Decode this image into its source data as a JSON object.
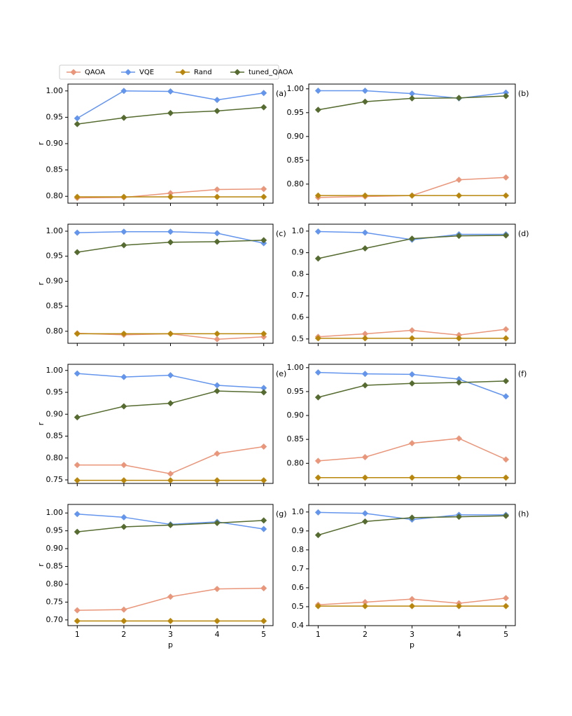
{
  "chart_data": [
    {
      "type": "line",
      "label": "(a)",
      "ylabel": "r",
      "x": [
        1,
        2,
        3,
        4,
        5
      ],
      "xlim": [
        0.8,
        5.2
      ],
      "ylim": [
        0.787,
        1.013
      ],
      "yticks": [
        {
          "value": 0.8,
          "label": "0.80"
        },
        0.85,
        {
          "value": 0.9,
          "label": "0.90"
        },
        0.95,
        {
          "value": 1,
          "label": "1.00"
        }
      ],
      "series": [
        {
          "name": "QAOA",
          "color": "#e9967a",
          "values": [
            0.797,
            0.798,
            0.806,
            0.813,
            0.814
          ]
        },
        {
          "name": "VQE",
          "color": "#6495ed",
          "values": [
            0.948,
            1.0,
            0.999,
            0.983,
            0.996
          ]
        },
        {
          "name": "Rand",
          "color": "#b8860b",
          "values": [
            0.799,
            0.799,
            0.799,
            0.799,
            0.799
          ]
        },
        {
          "name": "tuned_QAOA",
          "color": "#556b2f",
          "values": [
            0.937,
            0.949,
            0.958,
            0.962,
            0.969
          ]
        }
      ]
    },
    {
      "type": "line",
      "label": "(b)",
      "x": [
        1,
        2,
        3,
        4,
        5
      ],
      "xlim": [
        0.8,
        5.2
      ],
      "ylim": [
        0.76,
        1.01
      ],
      "yticks": [
        {
          "value": 0.8,
          "label": "0.80"
        },
        0.85,
        {
          "value": 0.9,
          "label": "0.90"
        },
        0.95,
        {
          "value": 1,
          "label": "1.00"
        }
      ],
      "series": [
        {
          "values": [
            0.772,
            0.774,
            0.776,
            0.809,
            0.814
          ]
        },
        {
          "values": [
            0.996,
            0.996,
            0.99,
            0.98,
            0.992
          ]
        },
        {
          "values": [
            0.776,
            0.776,
            0.776,
            0.776,
            0.776
          ]
        },
        {
          "values": [
            0.956,
            0.973,
            0.98,
            0.981,
            0.985
          ]
        }
      ]
    },
    {
      "type": "line",
      "label": "(c)",
      "ylabel": "r",
      "x": [
        1,
        2,
        3,
        4,
        5
      ],
      "xlim": [
        0.8,
        5.2
      ],
      "ylim": [
        0.776,
        1.014
      ],
      "yticks": [
        {
          "value": 0.8,
          "label": "0.80"
        },
        0.85,
        {
          "value": 0.9,
          "label": "0.90"
        },
        0.95,
        {
          "value": 1,
          "label": "1.00"
        }
      ],
      "series": [
        {
          "values": [
            0.796,
            0.793,
            0.795,
            0.784,
            0.789
          ]
        },
        {
          "values": [
            0.997,
            0.999,
            0.999,
            0.996,
            0.976
          ]
        },
        {
          "values": [
            0.795,
            0.795,
            0.795,
            0.795,
            0.795
          ]
        },
        {
          "values": [
            0.958,
            0.972,
            0.978,
            0.979,
            0.982
          ]
        }
      ]
    },
    {
      "type": "line",
      "label": "(d)",
      "x": [
        1,
        2,
        3,
        4,
        5
      ],
      "xlim": [
        0.8,
        5.2
      ],
      "ylim": [
        0.48,
        1.032
      ],
      "yticks": [
        0.5,
        0.6,
        0.7,
        0.8,
        0.9,
        {
          "value": 1,
          "label": "1.0"
        }
      ],
      "series": [
        {
          "values": [
            0.51,
            0.524,
            0.54,
            0.518,
            0.545
          ]
        },
        {
          "values": [
            0.998,
            0.993,
            0.96,
            0.985,
            0.985
          ]
        },
        {
          "values": [
            0.503,
            0.503,
            0.503,
            0.503,
            0.503
          ]
        },
        {
          "values": [
            0.873,
            0.92,
            0.965,
            0.978,
            0.98
          ]
        }
      ]
    },
    {
      "type": "line",
      "label": "(e)",
      "ylabel": "r",
      "x": [
        1,
        2,
        3,
        4,
        5
      ],
      "xlim": [
        0.8,
        5.2
      ],
      "ylim": [
        0.742,
        1.014
      ],
      "yticks": [
        0.75,
        {
          "value": 0.8,
          "label": "0.80"
        },
        0.85,
        {
          "value": 0.9,
          "label": "0.90"
        },
        0.95,
        {
          "value": 1,
          "label": "1.00"
        }
      ],
      "series": [
        {
          "values": [
            0.784,
            0.784,
            0.764,
            0.81,
            0.826
          ]
        },
        {
          "values": [
            0.993,
            0.985,
            0.989,
            0.966,
            0.96
          ]
        },
        {
          "values": [
            0.749,
            0.749,
            0.749,
            0.749,
            0.749
          ]
        },
        {
          "values": [
            0.893,
            0.918,
            0.925,
            0.953,
            0.95
          ]
        }
      ]
    },
    {
      "type": "line",
      "label": "(f)",
      "x": [
        1,
        2,
        3,
        4,
        5
      ],
      "xlim": [
        0.8,
        5.2
      ],
      "ylim": [
        0.758,
        1.007
      ],
      "yticks": [
        {
          "value": 0.8,
          "label": "0.80"
        },
        0.85,
        {
          "value": 0.9,
          "label": "0.90"
        },
        0.95,
        {
          "value": 1,
          "label": "1.00"
        }
      ],
      "series": [
        {
          "values": [
            0.805,
            0.813,
            0.842,
            0.852,
            0.808
          ]
        },
        {
          "values": [
            0.99,
            0.987,
            0.986,
            0.976,
            0.94
          ]
        },
        {
          "values": [
            0.77,
            0.77,
            0.77,
            0.77,
            0.77
          ]
        },
        {
          "values": [
            0.938,
            0.963,
            0.967,
            0.969,
            0.972
          ]
        }
      ]
    },
    {
      "type": "line",
      "label": "(g)",
      "ylabel": "r",
      "xlabel": "p",
      "x": [
        1,
        2,
        3,
        4,
        5
      ],
      "xlim": [
        0.8,
        5.2
      ],
      "ylim": [
        0.684,
        1.024
      ],
      "xticks": [
        1,
        2,
        3,
        4,
        5
      ],
      "yticks": [
        {
          "value": 0.7,
          "label": "0.70"
        },
        0.75,
        {
          "value": 0.8,
          "label": "0.80"
        },
        0.85,
        {
          "value": 0.9,
          "label": "0.90"
        },
        0.95,
        {
          "value": 1,
          "label": "1.00"
        }
      ],
      "series": [
        {
          "values": [
            0.727,
            0.729,
            0.765,
            0.787,
            0.789
          ]
        },
        {
          "values": [
            0.997,
            0.988,
            0.968,
            0.975,
            0.955
          ]
        },
        {
          "values": [
            0.697,
            0.697,
            0.697,
            0.697,
            0.697
          ]
        },
        {
          "values": [
            0.947,
            0.961,
            0.966,
            0.972,
            0.979
          ]
        }
      ]
    },
    {
      "type": "line",
      "label": "(h)",
      "xlabel": "p",
      "x": [
        1,
        2,
        3,
        4,
        5
      ],
      "xlim": [
        0.8,
        5.2
      ],
      "ylim": [
        0.4,
        1.04
      ],
      "xticks": [
        1,
        2,
        3,
        4,
        5
      ],
      "yticks": [
        0.4,
        0.5,
        0.6,
        0.7,
        0.8,
        0.9,
        {
          "value": 1,
          "label": "1.0"
        }
      ],
      "series": [
        {
          "values": [
            0.51,
            0.524,
            0.54,
            0.518,
            0.545
          ]
        },
        {
          "values": [
            0.998,
            0.993,
            0.96,
            0.985,
            0.985
          ]
        },
        {
          "values": [
            0.503,
            0.503,
            0.503,
            0.503,
            0.503
          ]
        },
        {
          "values": [
            0.878,
            0.95,
            0.97,
            0.975,
            0.98
          ]
        }
      ]
    }
  ]
}
